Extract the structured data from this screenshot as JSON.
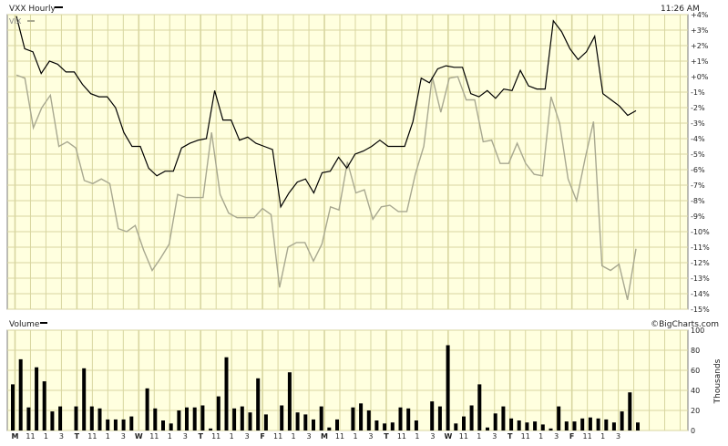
{
  "header": {
    "series_label": "VXX Hourly",
    "time_label": "11:26 AM",
    "secondary_label": "VIX",
    "volume_label": "Volume",
    "brand": "©BigCharts.com",
    "volume_axis_title": "Thousands"
  },
  "colors": {
    "background": "#ffffdf",
    "grid": "#d8d6a0",
    "vxx_line": "#000000",
    "vix_line": "#a8a890",
    "volume_bar": "#000000",
    "frame": "#7a7a7a"
  },
  "chart_data": [
    {
      "type": "line",
      "name": "price",
      "ylim": [
        -15,
        4
      ],
      "y_ticks": [
        "+4%",
        "+3%",
        "+2%",
        "+1%",
        "+0%",
        "-1%",
        "-2%",
        "-3%",
        "-4%",
        "-5%",
        "-6%",
        "-7%",
        "-8%",
        "-9%",
        "-10%",
        "-11%",
        "-12%",
        "-13%",
        "-14%",
        "-15%"
      ],
      "x_ticks": [
        "M",
        "11",
        "1",
        "3",
        "T",
        "11",
        "1",
        "3",
        "W",
        "11",
        "1",
        "3",
        "T",
        "11",
        "1",
        "3",
        "F",
        "11",
        "1",
        "3",
        "M",
        "11",
        "1",
        "3",
        "T",
        "11",
        "1",
        "3",
        "W",
        "11",
        "1",
        "3",
        "T",
        "11",
        "1",
        "3",
        "F",
        "11",
        "1",
        "3"
      ],
      "bold_ticks": [
        "M",
        "T",
        "W",
        "F"
      ],
      "grid": true,
      "series": [
        {
          "name": "VXX Hourly",
          "values": [
            3.9,
            1.8,
            1.6,
            0.2,
            1.0,
            0.8,
            0.3,
            0.3,
            -0.5,
            -1.1,
            -1.3,
            -1.3,
            -2.0,
            -3.6,
            -4.5,
            -4.5,
            -5.9,
            -6.4,
            -6.1,
            -6.1,
            -4.6,
            -4.3,
            -4.1,
            -4.0,
            -0.9,
            -2.8,
            -2.8,
            -4.1,
            -3.9,
            -4.3,
            -4.5,
            -4.7,
            -8.4,
            -7.5,
            -6.8,
            -6.6,
            -7.5,
            -6.2,
            -6.1,
            -5.2,
            -5.9,
            -5.0,
            -4.8,
            -4.5,
            -4.1,
            -4.5,
            -4.5,
            -4.5,
            -2.9,
            -0.1,
            -0.4,
            0.5,
            0.7,
            0.6,
            0.6,
            -1.1,
            -1.3,
            -0.9,
            -1.4,
            -0.8,
            -0.9,
            0.4,
            -0.6,
            -0.8,
            -0.8,
            3.6,
            2.9,
            1.8,
            1.1,
            1.6,
            2.6,
            -1.1,
            -1.5,
            -1.9,
            -2.5,
            -2.2
          ]
        },
        {
          "name": "VIX",
          "values": [
            0.1,
            -0.1,
            -3.3,
            -2.0,
            -1.2,
            -4.5,
            -4.2,
            -4.6,
            -6.7,
            -6.9,
            -6.6,
            -6.9,
            -9.8,
            -10.0,
            -9.6,
            -11.2,
            -12.5,
            -11.7,
            -10.8,
            -7.6,
            -7.8,
            -7.8,
            -7.8,
            -3.6,
            -7.6,
            -8.8,
            -9.1,
            -9.1,
            -9.1,
            -8.5,
            -8.9,
            -13.6,
            -11.0,
            -10.7,
            -10.7,
            -11.9,
            -10.8,
            -8.4,
            -8.6,
            -5.5,
            -7.5,
            -7.3,
            -9.2,
            -8.4,
            -8.3,
            -8.7,
            -8.7,
            -6.3,
            -4.5,
            0.0,
            -2.3,
            -0.1,
            0.0,
            -1.5,
            -1.5,
            -4.2,
            -4.1,
            -5.6,
            -5.6,
            -4.3,
            -5.6,
            -6.3,
            -6.4,
            -1.3,
            -3.0,
            -6.6,
            -8.0,
            -5.3,
            -2.9,
            -12.2,
            -12.5,
            -12.1,
            -14.4,
            -11.1
          ]
        }
      ]
    },
    {
      "type": "bar",
      "name": "volume",
      "ylim": [
        0,
        100
      ],
      "y_ticks": [
        "100",
        "80",
        "60",
        "40",
        "20",
        "0"
      ],
      "values": [
        46,
        71,
        23,
        63,
        49,
        19,
        24,
        0,
        24,
        62,
        24,
        22,
        11,
        11,
        11,
        14,
        0,
        42,
        22,
        10,
        7,
        20,
        23,
        23,
        25,
        2,
        34,
        73,
        22,
        24,
        18,
        52,
        16,
        0,
        25,
        58,
        18,
        16,
        11,
        24,
        3,
        11,
        0,
        23,
        27,
        20,
        10,
        7,
        8,
        23,
        22,
        10,
        0,
        29,
        24,
        85,
        7,
        14,
        25,
        46,
        3,
        17,
        24,
        12,
        10,
        8,
        9,
        6,
        2,
        24,
        9,
        9,
        12,
        13,
        12,
        11,
        8,
        19,
        38,
        8
      ]
    }
  ]
}
